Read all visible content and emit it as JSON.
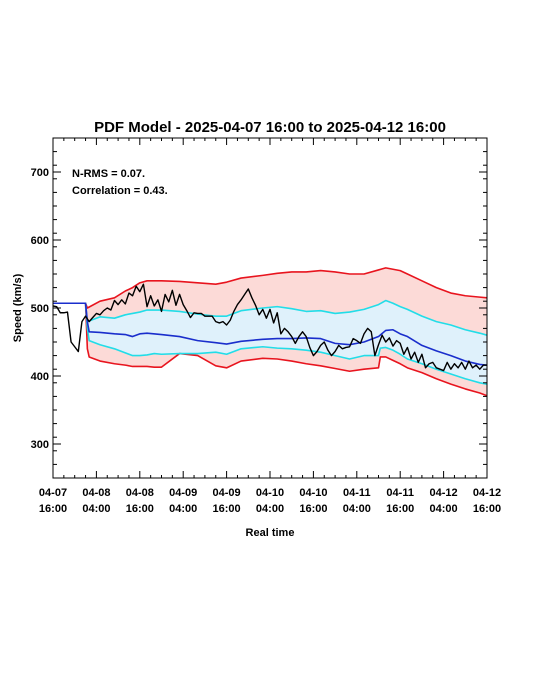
{
  "chart_data": {
    "type": "line",
    "title": "PDF Model - 2025-04-07 16:00 to 2025-04-12 16:00",
    "xlabel": "Real time",
    "ylabel": "Speed (km/s)",
    "annotations": [
      "N-RMS = 0.07.",
      "Correlation = 0.43."
    ],
    "xlim": [
      0,
      120
    ],
    "ylim": [
      250,
      750
    ],
    "x_ticks": [
      {
        "t": 0,
        "line1": "04-07",
        "line2": "16:00"
      },
      {
        "t": 12,
        "line1": "04-08",
        "line2": "04:00"
      },
      {
        "t": 24,
        "line1": "04-08",
        "line2": "16:00"
      },
      {
        "t": 36,
        "line1": "04-09",
        "line2": "04:00"
      },
      {
        "t": 48,
        "line1": "04-09",
        "line2": "16:00"
      },
      {
        "t": 60,
        "line1": "04-10",
        "line2": "04:00"
      },
      {
        "t": 72,
        "line1": "04-10",
        "line2": "16:00"
      },
      {
        "t": 84,
        "line1": "04-11",
        "line2": "04:00"
      },
      {
        "t": 96,
        "line1": "04-11",
        "line2": "16:00"
      },
      {
        "t": 108,
        "line1": "04-12",
        "line2": "04:00"
      },
      {
        "t": 120,
        "line1": "04-12",
        "line2": "16:00"
      }
    ],
    "y_ticks": [
      300,
      400,
      500,
      600,
      700
    ],
    "colors": {
      "observed": "#000000",
      "median": "#1a2ecc",
      "inner": "#22dde8",
      "outer": "#e8141e",
      "inner_fill": "#dff1fb",
      "outer_fill": "#fcdad7"
    },
    "series": [
      {
        "key": "outer_upper",
        "t": [
          0,
          9,
          9.5,
          13,
          17,
          20,
          22,
          24,
          26,
          30,
          35,
          40,
          45,
          48,
          52,
          58,
          62,
          66,
          70,
          74,
          78,
          82,
          86,
          90,
          92,
          94,
          96,
          98,
          102,
          106,
          110,
          114,
          118,
          120
        ],
        "values": [
          507,
          507,
          500,
          510,
          515,
          525,
          530,
          537,
          540,
          540,
          539,
          537,
          535,
          538,
          544,
          548,
          551,
          553,
          553,
          555,
          553,
          550,
          550,
          556,
          559,
          557,
          555,
          550,
          540,
          530,
          522,
          518,
          516,
          515
        ]
      },
      {
        "key": "inner_upper",
        "t": [
          0,
          9,
          9.5,
          13,
          17,
          20,
          22,
          24,
          26,
          30,
          35,
          40,
          45,
          48,
          52,
          58,
          62,
          66,
          70,
          74,
          78,
          82,
          86,
          90,
          92,
          94,
          96,
          98,
          102,
          106,
          110,
          114,
          118,
          120
        ],
        "values": [
          507,
          507,
          480,
          487,
          485,
          490,
          492,
          494,
          497,
          497,
          495,
          491,
          488,
          488,
          496,
          500,
          502,
          499,
          495,
          496,
          492,
          494,
          498,
          505,
          511,
          507,
          502,
          498,
          488,
          480,
          475,
          468,
          463,
          460
        ]
      },
      {
        "key": "median",
        "t": [
          0,
          9,
          9.5,
          10,
          13,
          17,
          20,
          22,
          24,
          26,
          30,
          35,
          40,
          45,
          48,
          52,
          58,
          62,
          66,
          70,
          74,
          78,
          82,
          86,
          90,
          92,
          94,
          96,
          98,
          102,
          106,
          110,
          114,
          118,
          120
        ],
        "values": [
          507,
          507,
          480,
          465,
          464,
          462,
          461,
          458,
          462,
          463,
          461,
          458,
          452,
          449,
          447,
          451,
          454,
          455,
          455,
          456,
          455,
          448,
          446,
          450,
          458,
          467,
          468,
          462,
          458,
          445,
          437,
          430,
          422,
          417,
          416
        ]
      },
      {
        "key": "inner_lower",
        "t": [
          0,
          9,
          9.5,
          10,
          13,
          17,
          20,
          22,
          24,
          26,
          28,
          30,
          35,
          40,
          45,
          48,
          52,
          58,
          62,
          66,
          70,
          74,
          78,
          82,
          86,
          90,
          90.5,
          92,
          94,
          96,
          98,
          102,
          106,
          110,
          114,
          118,
          120
        ],
        "values": [
          507,
          507,
          470,
          452,
          446,
          440,
          434,
          430,
          430,
          431,
          433,
          432,
          433,
          433,
          435,
          432,
          440,
          443,
          441,
          440,
          438,
          435,
          430,
          425,
          430,
          430,
          441,
          442,
          438,
          432,
          425,
          418,
          410,
          403,
          396,
          390,
          388
        ]
      },
      {
        "key": "outer_lower",
        "t": [
          0,
          9,
          9.5,
          10,
          13,
          17,
          20,
          22,
          24,
          26,
          28,
          30,
          35,
          40,
          45,
          48,
          52,
          58,
          62,
          66,
          70,
          74,
          78,
          82,
          86,
          90,
          90.5,
          92,
          94,
          96,
          98,
          102,
          106,
          110,
          114,
          118,
          120
        ],
        "values": [
          507,
          507,
          440,
          428,
          422,
          418,
          416,
          414,
          414,
          414,
          413,
          413,
          433,
          430,
          415,
          412,
          422,
          426,
          425,
          422,
          418,
          415,
          411,
          407,
          410,
          412,
          428,
          428,
          423,
          418,
          412,
          405,
          396,
          388,
          381,
          375,
          371
        ]
      },
      {
        "key": "observed",
        "t": [
          0,
          1,
          2,
          3,
          4,
          5,
          6,
          7,
          8,
          9,
          10,
          11,
          12,
          13,
          14,
          15,
          16,
          17,
          18,
          19,
          20,
          21,
          22,
          23,
          24,
          25,
          26,
          27,
          28,
          29,
          30,
          31,
          32,
          33,
          34,
          35,
          36,
          37,
          38,
          39,
          40,
          41,
          42,
          43,
          44,
          45,
          46,
          47,
          48,
          49,
          50,
          51,
          52,
          53,
          54,
          55,
          56,
          57,
          58,
          59,
          60,
          61,
          62,
          63,
          64,
          65,
          66,
          67,
          68,
          69,
          70,
          71,
          72,
          73,
          74,
          75,
          76,
          77,
          78,
          79,
          80,
          81,
          82,
          83,
          84,
          85,
          86,
          87,
          88,
          89,
          90,
          91,
          92,
          93,
          94,
          95,
          96,
          97,
          98,
          99,
          100,
          101,
          102,
          103,
          104,
          105,
          106,
          107,
          108,
          109,
          110,
          111,
          112,
          113,
          114,
          115,
          116,
          117,
          118,
          119,
          120
        ],
        "values": [
          503,
          502,
          493,
          493,
          494,
          450,
          443,
          436,
          480,
          488,
          480,
          486,
          492,
          490,
          496,
          500,
          497,
          511,
          505,
          512,
          506,
          522,
          518,
          532,
          524,
          535,
          502,
          518,
          503,
          512,
          495,
          520,
          509,
          526,
          504,
          520,
          505,
          496,
          486,
          493,
          492,
          492,
          488,
          488,
          488,
          480,
          478,
          480,
          475,
          482,
          495,
          505,
          512,
          520,
          528,
          515,
          504,
          490,
          498,
          485,
          498,
          478,
          493,
          462,
          470,
          465,
          458,
          448,
          458,
          465,
          458,
          442,
          430,
          436,
          445,
          450,
          438,
          430,
          436,
          445,
          440,
          442,
          443,
          455,
          452,
          448,
          462,
          470,
          465,
          430,
          446,
          460,
          450,
          456,
          444,
          452,
          448,
          432,
          442,
          425,
          435,
          420,
          432,
          412,
          418,
          420,
          412,
          410,
          408,
          420,
          410,
          418,
          412,
          420,
          410,
          422,
          412,
          416,
          410,
          416,
          416
        ]
      }
    ]
  }
}
